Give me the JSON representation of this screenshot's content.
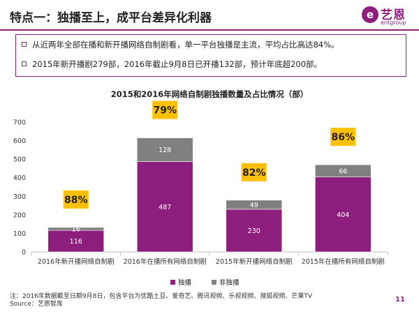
{
  "slide": {
    "title": "特点一：独播至上，成平台差异化利器",
    "page_number": "11"
  },
  "logo": {
    "mark": "e",
    "name": "艺恩",
    "sub": "entgroup"
  },
  "bullets": [
    "从近两年全部在播和新开播网络自制剧看，单一平台独播是主流，平均占比高达84%。",
    "2015年新开播剧279部，2016年截止9月8日已开播132部，预计年底超200部。"
  ],
  "footer": {
    "note": "注：2016年数据截至日期9月8日，包含平台为优酷土豆、爱奇艺、腾讯视频、乐视视频、搜狐视频、芒果TV",
    "source": "Source：艺恩智库"
  },
  "colors": {
    "accent": "#8e1e7e",
    "exclusive": "#8e1e7e",
    "non_exclusive": "#808080",
    "badge": "#ffc000"
  },
  "chart_data": {
    "type": "bar",
    "stacked": true,
    "title": "2015和2016年网络自制剧独播数量及占比情况（部）",
    "categories": [
      "2016年新开播网络自制剧",
      "2016年在播所有网络自制剧",
      "2015年新开播网络自制剧",
      "2015年在播所有网络自制剧"
    ],
    "series": [
      {
        "name": "独播",
        "values": [
          116,
          487,
          230,
          404
        ],
        "color": "#8e1e7e"
      },
      {
        "name": "非独播",
        "values": [
          16,
          128,
          49,
          66
        ],
        "color": "#808080"
      }
    ],
    "share_labels": [
      "88%",
      "79%",
      "82%",
      "86%"
    ],
    "ylim": [
      0,
      700
    ],
    "yticks": [
      0,
      100,
      200,
      300,
      400,
      500,
      600,
      700
    ],
    "grid": false,
    "legend": "bottom-center"
  }
}
